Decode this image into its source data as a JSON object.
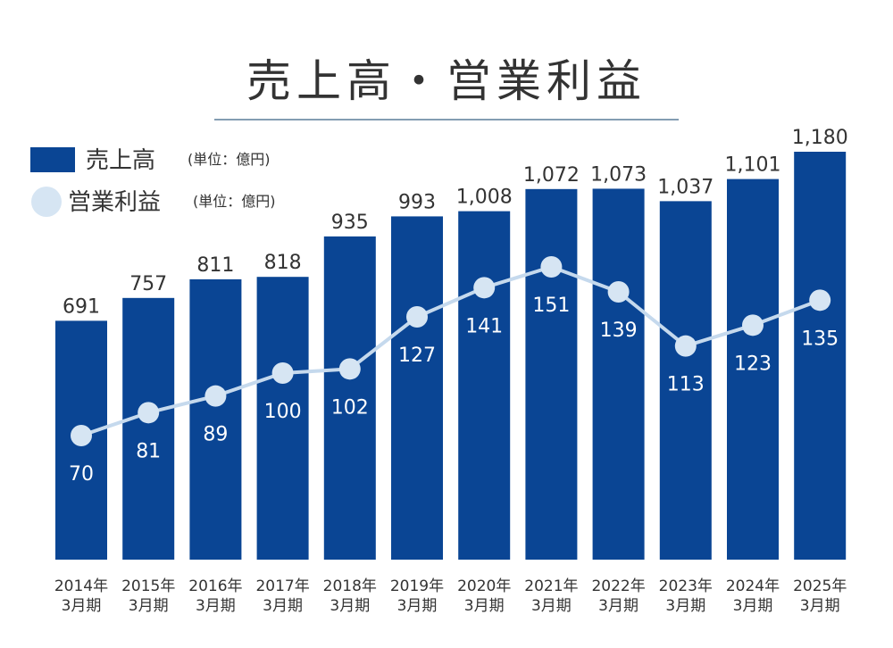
{
  "title": "売上高・営業利益",
  "legend": {
    "sales": {
      "label": "売上高",
      "unit": "(単位：億円)"
    },
    "profit": {
      "label": "営業利益",
      "unit": "(単位：億円)"
    }
  },
  "colors": {
    "bar": "#0a4594",
    "line": "#c5d9ed",
    "marker": "#d6e5f3",
    "title_rule": "#5a7d98"
  },
  "chart_data": {
    "type": "bar",
    "categories": [
      [
        "2014年",
        "3月期"
      ],
      [
        "2015年",
        "3月期"
      ],
      [
        "2016年",
        "3月期"
      ],
      [
        "2017年",
        "3月期"
      ],
      [
        "2018年",
        "3月期"
      ],
      [
        "2019年",
        "3月期"
      ],
      [
        "2020年",
        "3月期"
      ],
      [
        "2021年",
        "3月期"
      ],
      [
        "2022年",
        "3月期"
      ],
      [
        "2023年",
        "3月期"
      ],
      [
        "2024年",
        "3月期"
      ],
      [
        "2025年",
        "3月期"
      ]
    ],
    "series": [
      {
        "name": "売上高",
        "type": "bar",
        "values": [
          691,
          757,
          811,
          818,
          935,
          993,
          1008,
          1072,
          1073,
          1037,
          1101,
          1180
        ],
        "labels": [
          "691",
          "757",
          "811",
          "818",
          "935",
          "993",
          "1,008",
          "1,072",
          "1,073",
          "1,037",
          "1,101",
          "1,180"
        ]
      },
      {
        "name": "営業利益",
        "type": "line",
        "values": [
          70,
          81,
          89,
          100,
          102,
          127,
          141,
          151,
          139,
          113,
          123,
          135
        ],
        "labels": [
          "70",
          "81",
          "89",
          "100",
          "102",
          "127",
          "141",
          "151",
          "139",
          "113",
          "123",
          "135"
        ]
      }
    ],
    "unit": "億円",
    "legend_position": "top-left",
    "grid": false
  }
}
